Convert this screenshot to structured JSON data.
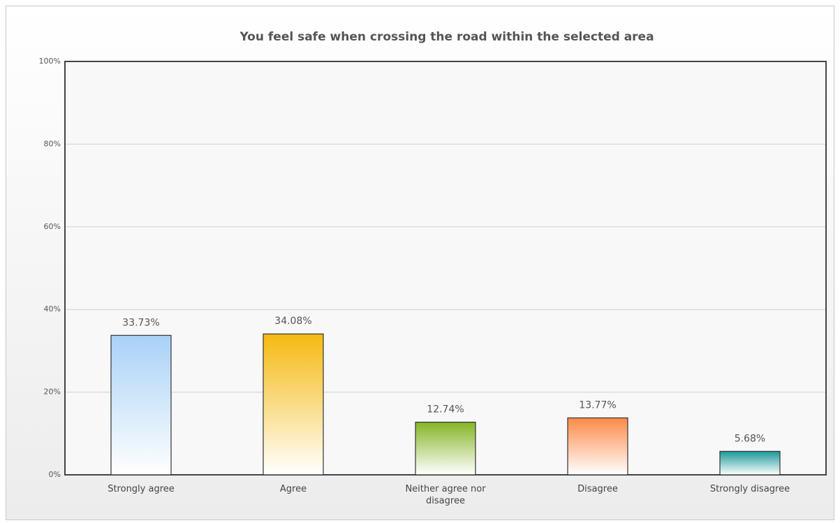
{
  "chart_data": {
    "type": "bar",
    "title": "You feel safe when crossing the road within the selected area",
    "categories": [
      "Strongly agree",
      "Agree",
      "Neither agree nor disagree",
      "Disagree",
      "Strongly disagree"
    ],
    "values": [
      33.73,
      34.08,
      12.74,
      13.77,
      5.68
    ],
    "value_labels": [
      "33.73%",
      "34.08%",
      "12.74%",
      "13.77%",
      "5.68%"
    ],
    "colors": [
      "#a9d1f7",
      "#f5b910",
      "#86b526",
      "#fb8a48",
      "#1b9898"
    ],
    "ylim": [
      0,
      100
    ],
    "yticks": [
      {
        "value": 0,
        "label": "0%"
      },
      {
        "value": 20,
        "label": "20%"
      },
      {
        "value": 40,
        "label": "40%"
      },
      {
        "value": 60,
        "label": "60%"
      },
      {
        "value": 80,
        "label": "80%"
      },
      {
        "value": 100,
        "label": "100%"
      }
    ],
    "grid": true
  }
}
